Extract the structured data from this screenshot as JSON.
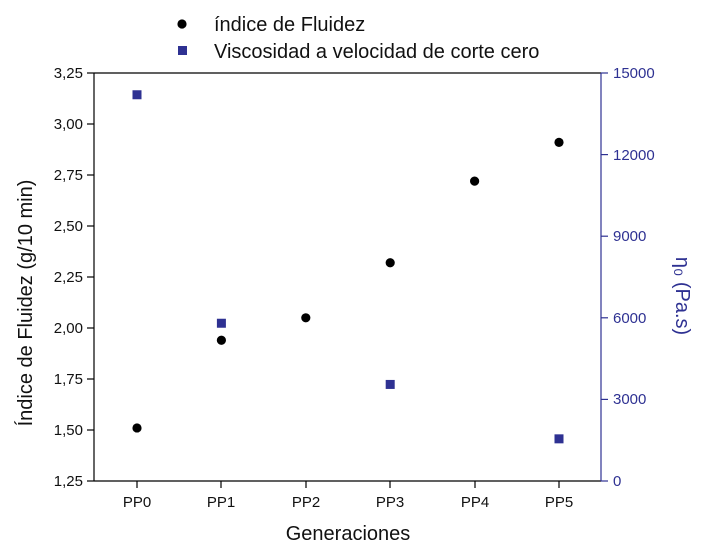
{
  "chart_data": {
    "type": "scatter",
    "xlabel": "Generaciones",
    "ylabel": "Índice de Fluidez (g/10 min)",
    "y2label": "η₀ (Pa.s)",
    "categories": [
      "PP0",
      "PP1",
      "PP2",
      "PP3",
      "PP4",
      "PP5"
    ],
    "ylim": [
      1.25,
      3.25
    ],
    "y2lim": [
      0,
      15000
    ],
    "yticks": [
      "1,25",
      "1,50",
      "1,75",
      "2,00",
      "2,25",
      "2,50",
      "2,75",
      "3,00",
      "3,25"
    ],
    "y2ticks": [
      "0",
      "3000",
      "6000",
      "9000",
      "12000",
      "15000"
    ],
    "legend_position": "top",
    "grid": false,
    "series": [
      {
        "name": "índice de Fluidez",
        "axis": "left",
        "marker": "circle",
        "color": "#000000",
        "values": [
          1.51,
          1.94,
          2.05,
          2.32,
          2.72,
          2.91
        ]
      },
      {
        "name": "Viscosidad a velocidad de corte cero",
        "axis": "right",
        "marker": "square",
        "color": "#2e3192",
        "values": [
          14200,
          5800,
          null,
          3550,
          null,
          1550
        ]
      }
    ]
  }
}
